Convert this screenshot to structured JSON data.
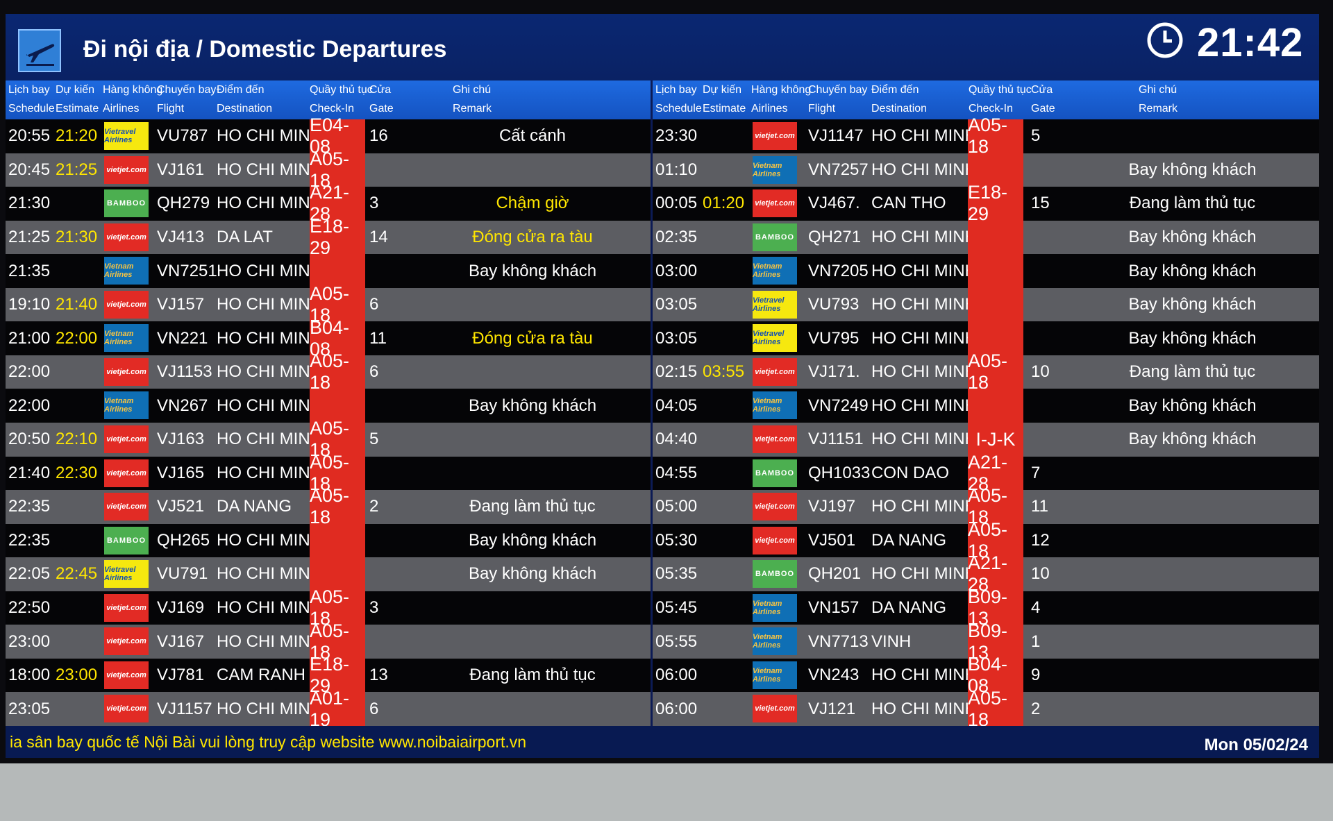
{
  "header": {
    "title": "Đi nội địa / Domestic Departures",
    "time": "21:42",
    "icon": "departure-plane-icon",
    "clock_icon": "clock-icon"
  },
  "columns": {
    "schedule": {
      "vi": "Lịch bay",
      "en": "Schedule"
    },
    "estimate": {
      "vi": "Dự kiến",
      "en": "Estimate"
    },
    "airline": {
      "vi": "Hàng không",
      "en": "Airlines"
    },
    "flight": {
      "vi": "Chuyến bay",
      "en": "Flight"
    },
    "destination": {
      "vi": "Điểm đến",
      "en": "Destination"
    },
    "checkin": {
      "vi": "Quầy thủ tục",
      "en": "Check-In"
    },
    "gate": {
      "vi": "Cửa",
      "en": "Gate"
    },
    "remark": {
      "vi": "Ghi chú",
      "en": "Remark"
    }
  },
  "airline_logos": {
    "vietjet": "vietjet.com",
    "bamboo": "BAMBOO",
    "vietravel": "Vietravel Airlines",
    "vna": "Vietnam Airlines"
  },
  "colors": {
    "checkin_bg": "#e02b21",
    "estimate_text": "#ffe600",
    "header_bar": "#1e6ae0",
    "screen_bg": "#081d5a"
  },
  "left_flights": [
    {
      "schedule": "20:55",
      "estimate": "21:20",
      "airline": "vietravel",
      "flight": "VU787",
      "destination": "HO CHI MINH",
      "checkin": "E04-08",
      "gate": "16",
      "remark": "Cất cánh",
      "remark_color": "white"
    },
    {
      "schedule": "20:45",
      "estimate": "21:25",
      "airline": "vietjet",
      "flight": "VJ161",
      "destination": "HO CHI MINH",
      "checkin": "A05-18",
      "gate": "",
      "remark": "",
      "remark_color": "white"
    },
    {
      "schedule": "21:30",
      "estimate": "",
      "airline": "bamboo",
      "flight": "QH279",
      "destination": "HO CHI MINH",
      "checkin": "A21-28",
      "gate": "3",
      "remark": "Chậm giờ",
      "remark_color": "yellow"
    },
    {
      "schedule": "21:25",
      "estimate": "21:30",
      "airline": "vietjet",
      "flight": "VJ413",
      "destination": "DA LAT",
      "checkin": "E18-29",
      "gate": "14",
      "remark": "Đóng cửa ra tàu",
      "remark_color": "yellow"
    },
    {
      "schedule": "21:35",
      "estimate": "",
      "airline": "vna",
      "flight": "VN7251",
      "destination": "HO CHI MINH",
      "checkin": "",
      "gate": "",
      "remark": "Bay không khách",
      "remark_color": "white"
    },
    {
      "schedule": "19:10",
      "estimate": "21:40",
      "airline": "vietjet",
      "flight": "VJ157",
      "destination": "HO CHI MINH",
      "checkin": "A05-18",
      "gate": "6",
      "remark": "",
      "remark_color": "white"
    },
    {
      "schedule": "21:00",
      "estimate": "22:00",
      "airline": "vna",
      "flight": "VN221",
      "destination": "HO CHI MINH",
      "checkin": "B04-08",
      "gate": "11",
      "remark": "Đóng cửa ra tàu",
      "remark_color": "yellow"
    },
    {
      "schedule": "22:00",
      "estimate": "",
      "airline": "vietjet",
      "flight": "VJ1153",
      "destination": "HO CHI MINH",
      "checkin": "A05-18",
      "gate": "6",
      "remark": "",
      "remark_color": "white"
    },
    {
      "schedule": "22:00",
      "estimate": "",
      "airline": "vna",
      "flight": "VN267",
      "destination": "HO CHI MINH",
      "checkin": "",
      "gate": "",
      "remark": "Bay không khách",
      "remark_color": "white"
    },
    {
      "schedule": "20:50",
      "estimate": "22:10",
      "airline": "vietjet",
      "flight": "VJ163",
      "destination": "HO CHI MINH",
      "checkin": "A05-18",
      "gate": "5",
      "remark": "",
      "remark_color": "white"
    },
    {
      "schedule": "21:40",
      "estimate": "22:30",
      "airline": "vietjet",
      "flight": "VJ165",
      "destination": "HO CHI MINH",
      "checkin": "A05-18",
      "gate": "",
      "remark": "",
      "remark_color": "white"
    },
    {
      "schedule": "22:35",
      "estimate": "",
      "airline": "vietjet",
      "flight": "VJ521",
      "destination": "DA NANG",
      "checkin": "A05-18",
      "gate": "2",
      "remark": "Đang làm thủ tục",
      "remark_color": "white"
    },
    {
      "schedule": "22:35",
      "estimate": "",
      "airline": "bamboo",
      "flight": "QH265",
      "destination": "HO CHI MINH",
      "checkin": "",
      "gate": "",
      "remark": "Bay không khách",
      "remark_color": "white"
    },
    {
      "schedule": "22:05",
      "estimate": "22:45",
      "airline": "vietravel",
      "flight": "VU791",
      "destination": "HO CHI MINH",
      "checkin": "",
      "gate": "",
      "remark": "Bay không khách",
      "remark_color": "white"
    },
    {
      "schedule": "22:50",
      "estimate": "",
      "airline": "vietjet",
      "flight": "VJ169",
      "destination": "HO CHI MINH",
      "checkin": "A05-18",
      "gate": "3",
      "remark": "",
      "remark_color": "white"
    },
    {
      "schedule": "23:00",
      "estimate": "",
      "airline": "vietjet",
      "flight": "VJ167",
      "destination": "HO CHI MINH",
      "checkin": "A05-18",
      "gate": "",
      "remark": "",
      "remark_color": "white"
    },
    {
      "schedule": "18:00",
      "estimate": "23:00",
      "airline": "vietjet",
      "flight": "VJ781",
      "destination": "CAM RANH",
      "checkin": "E18-29",
      "gate": "13",
      "remark": "Đang làm thủ tục",
      "remark_color": "white"
    },
    {
      "schedule": "23:05",
      "estimate": "",
      "airline": "vietjet",
      "flight": "VJ1157",
      "destination": "HO CHI MINH",
      "checkin": "A01-19",
      "gate": "6",
      "remark": "",
      "remark_color": "white"
    }
  ],
  "right_flights": [
    {
      "schedule": "23:30",
      "estimate": "",
      "airline": "vietjet",
      "flight": "VJ1147",
      "destination": "HO CHI MINH",
      "checkin": "A05-18",
      "gate": "5",
      "remark": "",
      "remark_color": "white"
    },
    {
      "schedule": "01:10",
      "estimate": "",
      "airline": "vna",
      "flight": "VN7257",
      "destination": "HO CHI MINH",
      "checkin": "",
      "gate": "",
      "remark": "Bay không khách",
      "remark_color": "white"
    },
    {
      "schedule": "00:05",
      "estimate": "01:20",
      "airline": "vietjet",
      "flight": "VJ467.",
      "destination": "CAN THO",
      "checkin": "E18-29",
      "gate": "15",
      "remark": "Đang làm thủ tục",
      "remark_color": "white"
    },
    {
      "schedule": "02:35",
      "estimate": "",
      "airline": "bamboo",
      "flight": "QH271",
      "destination": "HO CHI MINH",
      "checkin": "",
      "gate": "",
      "remark": "Bay không khách",
      "remark_color": "white"
    },
    {
      "schedule": "03:00",
      "estimate": "",
      "airline": "vna",
      "flight": "VN7205",
      "destination": "HO CHI MINH",
      "checkin": "",
      "gate": "",
      "remark": "Bay không khách",
      "remark_color": "white"
    },
    {
      "schedule": "03:05",
      "estimate": "",
      "airline": "vietravel",
      "flight": "VU793",
      "destination": "HO CHI MINH",
      "checkin": "",
      "gate": "",
      "remark": "Bay không khách",
      "remark_color": "white"
    },
    {
      "schedule": "03:05",
      "estimate": "",
      "airline": "vietravel",
      "flight": "VU795",
      "destination": "HO CHI MINH",
      "checkin": "",
      "gate": "",
      "remark": "Bay không khách",
      "remark_color": "white"
    },
    {
      "schedule": "02:15",
      "estimate": "03:55",
      "airline": "vietjet",
      "flight": "VJ171.",
      "destination": "HO CHI MINH",
      "checkin": "A05-18",
      "gate": "10",
      "remark": "Đang làm thủ tục",
      "remark_color": "white"
    },
    {
      "schedule": "04:05",
      "estimate": "",
      "airline": "vna",
      "flight": "VN7249",
      "destination": "HO CHI MINH",
      "checkin": "",
      "gate": "",
      "remark": "Bay không khách",
      "remark_color": "white"
    },
    {
      "schedule": "04:40",
      "estimate": "",
      "airline": "vietjet",
      "flight": "VJ1151",
      "destination": "HO CHI MINH",
      "checkin": "I-J-K",
      "gate": "",
      "remark": "Bay không khách",
      "remark_color": "white"
    },
    {
      "schedule": "04:55",
      "estimate": "",
      "airline": "bamboo",
      "flight": "QH1033",
      "destination": "CON DAO",
      "checkin": "A21-28",
      "gate": "7",
      "remark": "",
      "remark_color": "white"
    },
    {
      "schedule": "05:00",
      "estimate": "",
      "airline": "vietjet",
      "flight": "VJ197",
      "destination": "HO CHI MINH",
      "checkin": "A05-18",
      "gate": "11",
      "remark": "",
      "remark_color": "white"
    },
    {
      "schedule": "05:30",
      "estimate": "",
      "airline": "vietjet",
      "flight": "VJ501",
      "destination": "DA NANG",
      "checkin": "A05-18",
      "gate": "12",
      "remark": "",
      "remark_color": "white"
    },
    {
      "schedule": "05:35",
      "estimate": "",
      "airline": "bamboo",
      "flight": "QH201",
      "destination": "HO CHI MINH",
      "checkin": "A21-28",
      "gate": "10",
      "remark": "",
      "remark_color": "white"
    },
    {
      "schedule": "05:45",
      "estimate": "",
      "airline": "vna",
      "flight": "VN157",
      "destination": "DA NANG",
      "checkin": "B09-13",
      "gate": "4",
      "remark": "",
      "remark_color": "white"
    },
    {
      "schedule": "05:55",
      "estimate": "",
      "airline": "vna",
      "flight": "VN7713",
      "destination": "VINH",
      "checkin": "B09-13",
      "gate": "1",
      "remark": "",
      "remark_color": "white"
    },
    {
      "schedule": "06:00",
      "estimate": "",
      "airline": "vna",
      "flight": "VN243",
      "destination": "HO CHI MINH",
      "checkin": "B04-08",
      "gate": "9",
      "remark": "",
      "remark_color": "white"
    },
    {
      "schedule": "06:00",
      "estimate": "",
      "airline": "vietjet",
      "flight": "VJ121",
      "destination": "HO CHI MINH",
      "checkin": "A05-18",
      "gate": "2",
      "remark": "",
      "remark_color": "white"
    }
  ],
  "footer": {
    "ticker": "ia sân bay quốc tế Nội Bài vui lòng truy cập website www.noibaiairport.vn",
    "date": "Mon 05/02/24"
  }
}
